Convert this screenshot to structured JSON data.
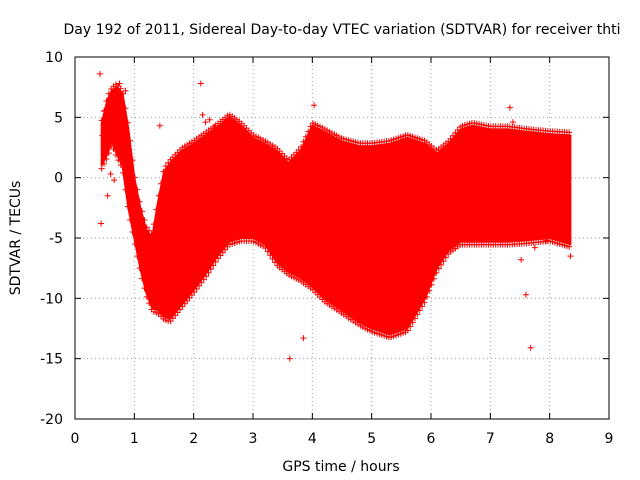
{
  "chart_data": {
    "type": "scatter",
    "title": "Day 192 of 2011, Sidereal Day-to-day VTEC variation (SDTVAR) for receiver thti",
    "xlabel": "GPS time / hours",
    "ylabel": "SDTVAR / TECUs",
    "xlim": [
      0,
      9
    ],
    "ylim": [
      -20,
      10
    ],
    "x_ticks": [
      0,
      1,
      2,
      3,
      4,
      5,
      6,
      7,
      8,
      9
    ],
    "y_ticks": [
      -20,
      -15,
      -10,
      -5,
      0,
      5,
      10
    ],
    "grid": true,
    "marker": "+",
    "series": [
      {
        "name": "SDTVAR",
        "color": "#ff0000",
        "upper_band": [
          [
            0.45,
            4.5
          ],
          [
            0.55,
            6.5
          ],
          [
            0.62,
            7.2
          ],
          [
            0.7,
            7.5
          ],
          [
            0.8,
            7.0
          ],
          [
            0.9,
            4.0
          ],
          [
            1.0,
            0.0
          ],
          [
            1.1,
            -2.5
          ],
          [
            1.2,
            -4.3
          ],
          [
            1.3,
            -5.0
          ],
          [
            1.4,
            -2.0
          ],
          [
            1.5,
            0.5
          ],
          [
            1.6,
            1.2
          ],
          [
            1.8,
            2.2
          ],
          [
            2.0,
            2.8
          ],
          [
            2.2,
            3.5
          ],
          [
            2.4,
            4.2
          ],
          [
            2.6,
            5.0
          ],
          [
            2.8,
            4.3
          ],
          [
            3.0,
            3.3
          ],
          [
            3.2,
            2.8
          ],
          [
            3.4,
            2.2
          ],
          [
            3.6,
            1.2
          ],
          [
            3.8,
            2.2
          ],
          [
            4.0,
            4.3
          ],
          [
            4.2,
            3.8
          ],
          [
            4.5,
            3.0
          ],
          [
            4.8,
            2.6
          ],
          [
            5.0,
            2.6
          ],
          [
            5.3,
            2.8
          ],
          [
            5.6,
            3.3
          ],
          [
            5.9,
            2.8
          ],
          [
            6.1,
            2.0
          ],
          [
            6.3,
            2.8
          ],
          [
            6.5,
            4.0
          ],
          [
            6.7,
            4.3
          ],
          [
            7.0,
            4.0
          ],
          [
            7.3,
            4.0
          ],
          [
            7.6,
            3.8
          ],
          [
            8.0,
            3.6
          ],
          [
            8.35,
            3.5
          ]
        ],
        "lower_band": [
          [
            0.45,
            1.0
          ],
          [
            0.55,
            2.0
          ],
          [
            0.62,
            3.0
          ],
          [
            0.7,
            2.0
          ],
          [
            0.8,
            1.0
          ],
          [
            0.9,
            -2.5
          ],
          [
            1.0,
            -5.0
          ],
          [
            1.1,
            -7.5
          ],
          [
            1.2,
            -9.5
          ],
          [
            1.3,
            -10.8
          ],
          [
            1.4,
            -11.0
          ],
          [
            1.5,
            -11.5
          ],
          [
            1.6,
            -11.7
          ],
          [
            1.8,
            -10.5
          ],
          [
            2.0,
            -9.3
          ],
          [
            2.2,
            -8.0
          ],
          [
            2.4,
            -6.5
          ],
          [
            2.6,
            -5.3
          ],
          [
            2.8,
            -5.0
          ],
          [
            3.0,
            -5.0
          ],
          [
            3.2,
            -5.5
          ],
          [
            3.4,
            -7.0
          ],
          [
            3.6,
            -7.8
          ],
          [
            3.8,
            -8.3
          ],
          [
            4.0,
            -9.0
          ],
          [
            4.2,
            -10.0
          ],
          [
            4.5,
            -11.0
          ],
          [
            4.8,
            -12.0
          ],
          [
            5.0,
            -12.5
          ],
          [
            5.3,
            -13.0
          ],
          [
            5.6,
            -12.5
          ],
          [
            5.9,
            -10.0
          ],
          [
            6.1,
            -7.5
          ],
          [
            6.3,
            -6.0
          ],
          [
            6.5,
            -5.3
          ],
          [
            6.7,
            -5.3
          ],
          [
            7.0,
            -5.3
          ],
          [
            7.3,
            -5.3
          ],
          [
            7.6,
            -5.2
          ],
          [
            8.0,
            -5.0
          ],
          [
            8.35,
            -5.5
          ]
        ],
        "outliers": [
          [
            0.42,
            8.6
          ],
          [
            0.44,
            -3.8
          ],
          [
            0.46,
            3.5
          ],
          [
            0.5,
            5.5
          ],
          [
            0.52,
            2.0
          ],
          [
            0.55,
            -1.5
          ],
          [
            0.57,
            3.0
          ],
          [
            0.6,
            0.3
          ],
          [
            0.66,
            -0.2
          ],
          [
            0.75,
            7.8
          ],
          [
            0.85,
            7.2
          ],
          [
            1.43,
            4.3
          ],
          [
            1.42,
            -3.0
          ],
          [
            2.12,
            7.8
          ],
          [
            2.15,
            5.2
          ],
          [
            2.2,
            4.6
          ],
          [
            2.27,
            4.8
          ],
          [
            2.35,
            4.2
          ],
          [
            3.62,
            -15.0
          ],
          [
            3.85,
            -13.3
          ],
          [
            4.03,
            6.0
          ],
          [
            3.72,
            1.6
          ],
          [
            3.85,
            2.0
          ],
          [
            7.33,
            5.8
          ],
          [
            7.38,
            4.6
          ],
          [
            7.52,
            -6.8
          ],
          [
            7.6,
            -9.7
          ],
          [
            7.68,
            -14.1
          ],
          [
            7.75,
            -5.8
          ],
          [
            7.95,
            -5.2
          ],
          [
            8.35,
            -6.5
          ]
        ]
      }
    ]
  }
}
